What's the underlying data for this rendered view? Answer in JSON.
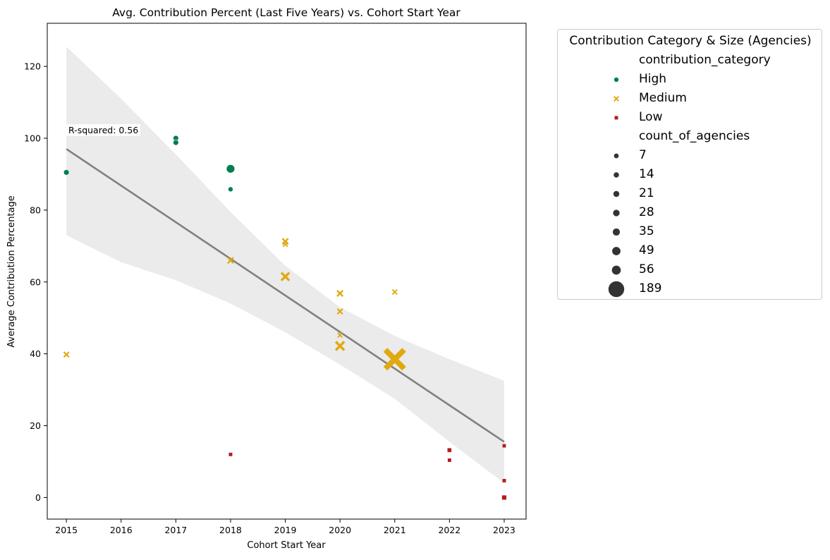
{
  "chart_data": {
    "type": "scatter",
    "title": "Avg. Contribution Percent (Last Five Years) vs. Cohort Start Year",
    "xlabel": "Cohort Start Year",
    "ylabel": "Average Contribution Percentage",
    "xlim": [
      2014.65,
      2023.4
    ],
    "ylim": [
      -6,
      132
    ],
    "xticks": [
      2015,
      2016,
      2017,
      2018,
      2019,
      2020,
      2021,
      2022,
      2023
    ],
    "yticks": [
      0,
      20,
      40,
      60,
      80,
      100,
      120
    ],
    "grid": false,
    "annotation": "R-squared: 0.56",
    "regression": {
      "line": [
        [
          2015,
          97.0
        ],
        [
          2023,
          15.5
        ]
      ],
      "ci_upper": [
        [
          2015,
          125.5
        ],
        [
          2016,
          111.0
        ],
        [
          2017,
          95.5
        ],
        [
          2018,
          79.5
        ],
        [
          2019,
          64.5
        ],
        [
          2020,
          53.0
        ],
        [
          2021,
          45.0
        ],
        [
          2022,
          38.5
        ],
        [
          2023,
          32.5
        ]
      ],
      "ci_lower": [
        [
          2015,
          73.0
        ],
        [
          2016,
          65.5
        ],
        [
          2017,
          60.5
        ],
        [
          2018,
          54.0
        ],
        [
          2019,
          46.0
        ],
        [
          2020,
          37.0
        ],
        [
          2021,
          27.5
        ],
        [
          2022,
          15.5
        ],
        [
          2023,
          4.0
        ]
      ],
      "line_color": "#808080",
      "band_color": "#ebebeb"
    },
    "series": [
      {
        "name": "High",
        "marker": "circle",
        "color": "#007f4f",
        "points": [
          {
            "x": 2015,
            "y": 90.5,
            "size": 14
          },
          {
            "x": 2017,
            "y": 100.0,
            "size": 14
          },
          {
            "x": 2017,
            "y": 98.8,
            "size": 14
          },
          {
            "x": 2018,
            "y": 91.5,
            "size": 49
          },
          {
            "x": 2018,
            "y": 85.8,
            "size": 7
          }
        ]
      },
      {
        "name": "Medium",
        "marker": "x",
        "color": "#e0a910",
        "points": [
          {
            "x": 2015,
            "y": 39.8,
            "size": 14
          },
          {
            "x": 2018,
            "y": 66.0,
            "size": 21
          },
          {
            "x": 2019,
            "y": 71.3,
            "size": 21
          },
          {
            "x": 2019,
            "y": 70.5,
            "size": 7
          },
          {
            "x": 2019,
            "y": 61.5,
            "size": 49
          },
          {
            "x": 2020,
            "y": 56.8,
            "size": 21
          },
          {
            "x": 2020,
            "y": 51.8,
            "size": 14
          },
          {
            "x": 2020,
            "y": 45.2,
            "size": 7
          },
          {
            "x": 2020,
            "y": 42.2,
            "size": 56
          },
          {
            "x": 2021,
            "y": 57.2,
            "size": 7
          },
          {
            "x": 2021,
            "y": 38.5,
            "size": 189
          }
        ]
      },
      {
        "name": "Low",
        "marker": "square",
        "color": "#b71c1c",
        "points": [
          {
            "x": 2018,
            "y": 12.0,
            "size": 7
          },
          {
            "x": 2022,
            "y": 13.2,
            "size": 14
          },
          {
            "x": 2022,
            "y": 10.4,
            "size": 7
          },
          {
            "x": 2023,
            "y": 14.4,
            "size": 7
          },
          {
            "x": 2023,
            "y": 4.7,
            "size": 7
          },
          {
            "x": 2023,
            "y": 0.0,
            "size": 21
          }
        ]
      }
    ],
    "legend": {
      "title": "Contribution Category & Size (Agencies)",
      "placement": "outside-right",
      "hue_title": "contribution_category",
      "size_title": "count_of_agencies",
      "size_entries": [
        "7",
        "14",
        "21",
        "28",
        "35",
        "49",
        "56",
        "189"
      ],
      "size_values": [
        7,
        14,
        21,
        28,
        35,
        49,
        56,
        189
      ],
      "size_marker_color": "#333333"
    }
  }
}
